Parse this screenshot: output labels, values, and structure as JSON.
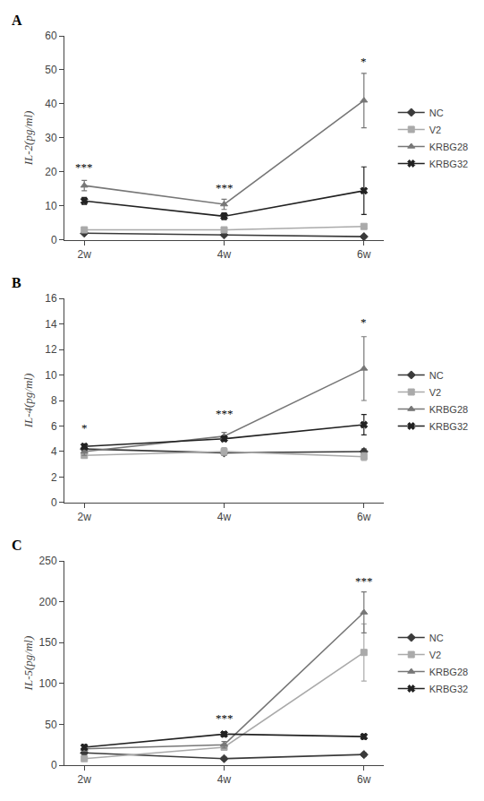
{
  "chart_data": [
    {
      "type": "line",
      "title": "A",
      "ylabel": "IL-2(pg/ml)",
      "categories": [
        "2w",
        "4w",
        "6w"
      ],
      "series": [
        {
          "name": "NC",
          "color": "#3a3a3a",
          "marker": "diamond",
          "line_style": "solid",
          "values": [
            2.0,
            1.5,
            1.0
          ],
          "yerr": [
            0.3,
            0.3,
            0.3
          ]
        },
        {
          "name": "V2",
          "color": "#aaaaaa",
          "marker": "square",
          "line_style": "solid",
          "values": [
            3.0,
            3.0,
            4.0
          ],
          "yerr": [
            0.5,
            0.5,
            0.5
          ]
        },
        {
          "name": "KRBG28",
          "color": "#777777",
          "marker": "triangle-up",
          "line_style": "solid",
          "values": [
            16.0,
            10.5,
            41.0
          ],
          "yerr": [
            1.5,
            1.5,
            8.0
          ]
        },
        {
          "name": "KRBG32",
          "color": "#222222",
          "marker": "x",
          "line_style": "solid",
          "values": [
            11.5,
            7.0,
            14.5
          ],
          "yerr": [
            1.0,
            1.0,
            7.0
          ]
        }
      ],
      "ylim": [
        0,
        60
      ],
      "yticks": [
        0,
        10,
        20,
        30,
        40,
        50,
        60
      ],
      "annotations": [
        {
          "x": "2w",
          "y": 19,
          "text": "***"
        },
        {
          "x": "4w",
          "y": 13,
          "text": "***"
        },
        {
          "x": "6w",
          "y": 50,
          "text": "*"
        }
      ],
      "grid": false,
      "legend": "right"
    },
    {
      "type": "line",
      "title": "B",
      "ylabel": "IL-4(pg/ml)",
      "categories": [
        "2w",
        "4w",
        "6w"
      ],
      "series": [
        {
          "name": "NC",
          "color": "#3a3a3a",
          "marker": "diamond",
          "line_style": "solid",
          "values": [
            4.2,
            3.9,
            4.0
          ],
          "yerr": [
            0.2,
            0.2,
            0.2
          ]
        },
        {
          "name": "V2",
          "color": "#aaaaaa",
          "marker": "square",
          "line_style": "solid",
          "values": [
            3.7,
            4.0,
            3.6
          ],
          "yerr": [
            0.2,
            0.3,
            0.3
          ]
        },
        {
          "name": "KRBG28",
          "color": "#777777",
          "marker": "triangle-up",
          "line_style": "solid",
          "values": [
            4.0,
            5.2,
            10.5
          ],
          "yerr": [
            0.3,
            0.3,
            2.5
          ]
        },
        {
          "name": "KRBG32",
          "color": "#222222",
          "marker": "x",
          "line_style": "solid",
          "values": [
            4.4,
            5.0,
            6.1
          ],
          "yerr": [
            0.2,
            0.2,
            0.8
          ]
        }
      ],
      "ylim": [
        0,
        16
      ],
      "yticks": [
        0,
        2,
        4,
        6,
        8,
        10,
        12,
        14,
        16
      ],
      "annotations": [
        {
          "x": "2w",
          "y": 5.2,
          "text": "*"
        },
        {
          "x": "4w",
          "y": 6.3,
          "text": "***"
        },
        {
          "x": "6w",
          "y": 13.5,
          "text": "*"
        }
      ],
      "grid": false,
      "legend": "right"
    },
    {
      "type": "line",
      "title": "C",
      "ylabel": "IL-5(pg/ml)",
      "categories": [
        "2w",
        "4w",
        "6w"
      ],
      "series": [
        {
          "name": "NC",
          "color": "#3a3a3a",
          "marker": "diamond",
          "line_style": "solid",
          "values": [
            15.0,
            8.0,
            13.0
          ],
          "yerr": [
            3.0,
            1.5,
            2.0
          ]
        },
        {
          "name": "V2",
          "color": "#aaaaaa",
          "marker": "square",
          "line_style": "solid",
          "values": [
            8.0,
            22.0,
            138.0
          ],
          "yerr": [
            2.0,
            3.0,
            35.0
          ]
        },
        {
          "name": "KRBG28",
          "color": "#777777",
          "marker": "triangle-up",
          "line_style": "solid",
          "values": [
            20.0,
            25.0,
            187.0
          ],
          "yerr": [
            3.0,
            4.0,
            25.0
          ]
        },
        {
          "name": "KRBG32",
          "color": "#222222",
          "marker": "x",
          "line_style": "solid",
          "values": [
            22.0,
            38.0,
            35.0
          ],
          "yerr": [
            3.0,
            3.0,
            3.0
          ]
        }
      ],
      "ylim": [
        0,
        250
      ],
      "yticks": [
        0,
        50,
        100,
        150,
        200,
        250
      ],
      "annotations": [
        {
          "x": "4w",
          "y": 47,
          "text": "***"
        },
        {
          "x": "6w",
          "y": 215,
          "text": "***"
        }
      ],
      "grid": false,
      "legend": "right"
    }
  ]
}
